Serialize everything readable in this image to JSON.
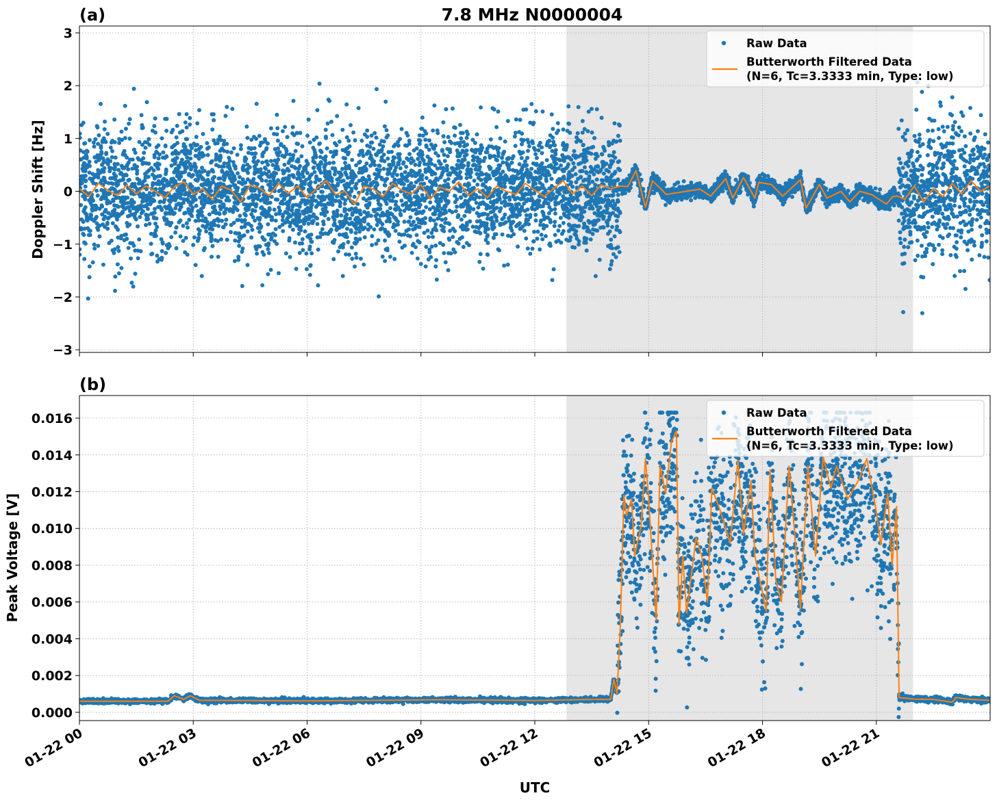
{
  "figure_title": "7.8 MHz N0000004",
  "xlabel": "UTC",
  "x_date": "01-22",
  "x_ticks": [
    "01-22 00",
    "01-22 03",
    "01-22 06",
    "01-22 09",
    "01-22 12",
    "01-22 15",
    "01-22 18",
    "01-22 21"
  ],
  "x_tick_times": [
    "00:00",
    "03:00",
    "06:00",
    "09:00",
    "12:00",
    "15:00",
    "18:00",
    "21:00"
  ],
  "xlim": [
    "00:00",
    "24:00"
  ],
  "shaded_region": [
    "12:50",
    "21:58"
  ],
  "colors": {
    "raw": "#1f77b4",
    "filtered": "#ff7f0e",
    "shade": "#e6e6e6",
    "grid": "#b0b0b0"
  },
  "chart_data": [
    {
      "type": "scatter+line",
      "panel_label": "(a)",
      "ylabel": "Doppler Shift [Hz]",
      "ylim": [
        -3.05,
        3.13
      ],
      "y_ticks": [
        3,
        2,
        1,
        0,
        -1,
        -2,
        -3
      ],
      "y_tick_labels": [
        "3",
        "2",
        "1",
        "0",
        "−1",
        "−2",
        "−3"
      ],
      "grid": true,
      "legend_position": "top-right",
      "series": [
        {
          "name": "Raw Data",
          "type": "scatter",
          "spread_sigma": [
            {
              "from": "00:00",
              "to": "14:15",
              "sigma": 0.6
            },
            {
              "from": "14:15",
              "to": "21:35",
              "sigma": 0.07
            },
            {
              "from": "21:35",
              "to": "24:00",
              "sigma": 0.6
            }
          ]
        },
        {
          "legend_lines": [
            "Butterworth Filtered Data",
            "(N=6, Tc=3.3333 min, Type: low)"
          ],
          "type": "line",
          "x": [
            "00:00",
            "00:15",
            "00:30",
            "00:45",
            "01:00",
            "01:15",
            "01:30",
            "01:45",
            "02:00",
            "02:15",
            "02:30",
            "02:45",
            "03:00",
            "03:15",
            "03:30",
            "03:45",
            "04:00",
            "04:15",
            "04:30",
            "04:45",
            "05:00",
            "05:15",
            "05:30",
            "05:45",
            "06:00",
            "06:15",
            "06:30",
            "06:45",
            "07:00",
            "07:15",
            "07:30",
            "07:45",
            "08:00",
            "08:15",
            "08:30",
            "08:45",
            "09:00",
            "09:15",
            "09:30",
            "09:45",
            "10:00",
            "10:15",
            "10:30",
            "10:45",
            "11:00",
            "11:15",
            "11:30",
            "11:45",
            "12:00",
            "12:15",
            "12:30",
            "12:45",
            "13:00",
            "13:15",
            "13:30",
            "13:45",
            "14:00",
            "14:15",
            "14:27",
            "14:40",
            "14:55",
            "15:06",
            "15:19",
            "15:28",
            "15:59",
            "16:21",
            "16:38",
            "17:02",
            "17:13",
            "17:30",
            "17:48",
            "17:54",
            "18:14",
            "18:32",
            "19:00",
            "19:09",
            "19:30",
            "19:42",
            "20:04",
            "20:18",
            "20:34",
            "20:52",
            "21:16",
            "21:26",
            "21:33",
            "21:45",
            "22:00",
            "22:15",
            "22:30",
            "22:45",
            "23:00",
            "23:15",
            "23:30",
            "23:45",
            "23:59"
          ],
          "y": [
            0.05,
            -0.1,
            0.15,
            0.02,
            -0.08,
            0.12,
            -0.05,
            0.1,
            0.0,
            -0.12,
            0.08,
            0.18,
            -0.06,
            0.05,
            -0.15,
            0.1,
            0.02,
            -0.2,
            0.12,
            0.06,
            -0.08,
            0.15,
            -0.04,
            0.1,
            -0.12,
            0.05,
            0.2,
            -0.06,
            0.0,
            -0.25,
            0.1,
            0.04,
            -0.1,
            0.15,
            0.02,
            -0.05,
            0.12,
            -0.15,
            0.08,
            0.0,
            0.18,
            -0.08,
            0.05,
            -0.12,
            0.1,
            0.0,
            -0.06,
            0.15,
            0.02,
            -0.1,
            0.05,
            0.2,
            -0.05,
            0.1,
            -0.08,
            0.12,
            0.05,
            0.1,
            0.09,
            0.39,
            -0.3,
            0.2,
            0.05,
            -0.06,
            0.0,
            0.04,
            -0.09,
            0.24,
            -0.13,
            0.26,
            -0.13,
            0.17,
            0.13,
            -0.09,
            0.22,
            -0.32,
            0.13,
            -0.13,
            0.0,
            -0.2,
            0.0,
            -0.06,
            -0.24,
            -0.1,
            -0.09,
            -0.15,
            0.1,
            -0.2,
            0.05,
            -0.1,
            0.15,
            -0.05,
            0.2,
            0.0,
            0.1
          ]
        }
      ]
    },
    {
      "type": "scatter+line",
      "panel_label": "(b)",
      "ylabel": "Peak Voltage [V]",
      "ylim": [
        -0.00045,
        0.01723
      ],
      "y_ticks": [
        0.0,
        0.002,
        0.004,
        0.006,
        0.008,
        0.01,
        0.012,
        0.014,
        0.016
      ],
      "y_tick_labels": [
        "0.000",
        "0.002",
        "0.004",
        "0.006",
        "0.008",
        "0.010",
        "0.012",
        "0.014",
        "0.016"
      ],
      "grid": true,
      "legend_position": "top-right",
      "series": [
        {
          "name": "Raw Data",
          "type": "scatter",
          "spread_sigma": [
            {
              "from": "00:00",
              "to": "14:10",
              "sigma": 6e-05
            },
            {
              "from": "14:10",
              "to": "21:36",
              "sigma": 0.0022
            },
            {
              "from": "21:36",
              "to": "24:00",
              "sigma": 7e-05
            }
          ]
        },
        {
          "legend_lines": [
            "Butterworth Filtered Data",
            "(N=6, Tc=3.3333 min, Type: low)"
          ],
          "type": "line",
          "x": [
            "00:00",
            "02:20",
            "02:30",
            "02:45",
            "02:55",
            "03:10",
            "06:00",
            "09:30",
            "12:00",
            "13:30",
            "14:00",
            "14:05",
            "14:10",
            "14:15",
            "14:21",
            "14:25",
            "14:33",
            "14:38",
            "14:48",
            "14:55",
            "15:00",
            "15:12",
            "15:18",
            "15:27",
            "15:36",
            "15:44",
            "15:48",
            "15:54",
            "16:00",
            "16:15",
            "16:24",
            "16:33",
            "16:40",
            "16:54",
            "17:09",
            "17:21",
            "17:30",
            "17:42",
            "17:48",
            "18:06",
            "18:12",
            "18:21",
            "18:30",
            "18:42",
            "18:51",
            "19:00",
            "19:12",
            "19:24",
            "19:36",
            "19:48",
            "19:57",
            "20:15",
            "20:33",
            "20:45",
            "21:00",
            "21:07",
            "21:18",
            "21:25",
            "21:32",
            "21:36",
            "22:00",
            "22:30",
            "23:00",
            "23:06",
            "23:30",
            "23:59"
          ],
          "y": [
            0.0006,
            0.0006,
            0.0009,
            0.0007,
            0.0009,
            0.00065,
            0.00062,
            0.00068,
            0.00064,
            0.0007,
            0.0007,
            0.0018,
            0.001,
            0.0045,
            0.0118,
            0.0107,
            0.0116,
            0.0085,
            0.0101,
            0.0138,
            0.0116,
            0.005,
            0.0134,
            0.0119,
            0.0147,
            0.0153,
            0.0048,
            0.0085,
            0.0054,
            0.0095,
            0.0085,
            0.006,
            0.0122,
            0.0109,
            0.0092,
            0.0137,
            0.0097,
            0.0126,
            0.0085,
            0.0055,
            0.0132,
            0.0072,
            0.006,
            0.0134,
            0.0097,
            0.0056,
            0.0134,
            0.0085,
            0.0139,
            0.0122,
            0.0134,
            0.0116,
            0.0127,
            0.0138,
            0.0109,
            0.0091,
            0.0119,
            0.008,
            0.0112,
            0.0008,
            0.00072,
            0.0007,
            0.00055,
            0.0008,
            0.0007,
            0.00065
          ]
        }
      ]
    }
  ]
}
